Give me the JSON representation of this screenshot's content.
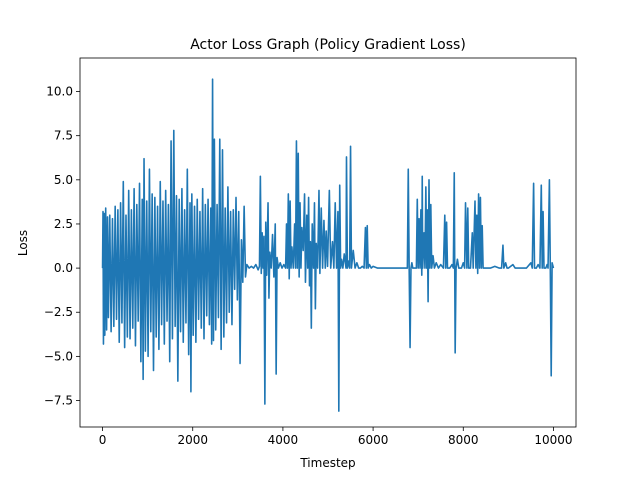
{
  "chart_data": {
    "type": "line",
    "title": "Actor Loss Graph (Policy Gradient Loss)",
    "xlabel": "Timestep",
    "ylabel": "Loss",
    "xlim": [
      -500,
      10500
    ],
    "ylim": [
      -9.0,
      11.9
    ],
    "xticks": [
      0,
      2000,
      4000,
      6000,
      8000,
      10000
    ],
    "yticks": [
      -7.5,
      -5.0,
      -2.5,
      0.0,
      2.5,
      5.0,
      7.5,
      10.0
    ],
    "xtick_labels": [
      "0",
      "2000",
      "4000",
      "6000",
      "8000",
      "10000"
    ],
    "ytick_labels": [
      "−7.5",
      "−5.0",
      "−2.5",
      "0.0",
      "2.5",
      "5.0",
      "7.5",
      "10.0"
    ],
    "grid": false,
    "line_color": "#1f77b4",
    "series": [
      {
        "values": [
          [
            0,
            0.0
          ],
          [
            10,
            3.2
          ],
          [
            20,
            -4.3
          ],
          [
            35,
            3.1
          ],
          [
            50,
            -3.8
          ],
          [
            70,
            3.4
          ],
          [
            90,
            -3.5
          ],
          [
            110,
            2.9
          ],
          [
            130,
            -2.8
          ],
          [
            160,
            3.0
          ],
          [
            190,
            -3.6
          ],
          [
            220,
            2.8
          ],
          [
            250,
            -3.3
          ],
          [
            280,
            3.5
          ],
          [
            310,
            -2.9
          ],
          [
            340,
            3.3
          ],
          [
            370,
            -4.2
          ],
          [
            400,
            3.7
          ],
          [
            430,
            -3.1
          ],
          [
            460,
            4.9
          ],
          [
            490,
            -4.5
          ],
          [
            520,
            3.0
          ],
          [
            550,
            -3.9
          ],
          [
            580,
            4.4
          ],
          [
            610,
            -4.0
          ],
          [
            640,
            3.3
          ],
          [
            670,
            -3.4
          ],
          [
            700,
            4.5
          ],
          [
            730,
            -4.4
          ],
          [
            760,
            3.6
          ],
          [
            790,
            -3.0
          ],
          [
            820,
            4.8
          ],
          [
            850,
            -5.3
          ],
          [
            880,
            3.9
          ],
          [
            900,
            -6.3
          ],
          [
            920,
            6.2
          ],
          [
            950,
            -4.7
          ],
          [
            980,
            3.8
          ],
          [
            1010,
            -5.0
          ],
          [
            1040,
            5.6
          ],
          [
            1070,
            -3.6
          ],
          [
            1100,
            4.2
          ],
          [
            1130,
            -5.8
          ],
          [
            1160,
            4.0
          ],
          [
            1190,
            -3.9
          ],
          [
            1220,
            3.5
          ],
          [
            1250,
            -4.6
          ],
          [
            1280,
            4.9
          ],
          [
            1310,
            -3.2
          ],
          [
            1340,
            3.8
          ],
          [
            1370,
            -4.3
          ],
          [
            1400,
            4.4
          ],
          [
            1430,
            -3.0
          ],
          [
            1460,
            3.6
          ],
          [
            1490,
            -5.3
          ],
          [
            1520,
            7.2
          ],
          [
            1550,
            -4.0
          ],
          [
            1580,
            7.8
          ],
          [
            1610,
            -3.3
          ],
          [
            1640,
            4.1
          ],
          [
            1670,
            -6.4
          ],
          [
            1700,
            3.9
          ],
          [
            1730,
            -3.6
          ],
          [
            1760,
            4.5
          ],
          [
            1790,
            -4.2
          ],
          [
            1820,
            3.3
          ],
          [
            1850,
            -3.1
          ],
          [
            1880,
            5.6
          ],
          [
            1910,
            -4.9
          ],
          [
            1940,
            3.7
          ],
          [
            1960,
            -7.0
          ],
          [
            1980,
            4.2
          ],
          [
            2010,
            -3.8
          ],
          [
            2040,
            3.5
          ],
          [
            2070,
            -4.2
          ],
          [
            2100,
            3.9
          ],
          [
            2130,
            -2.9
          ],
          [
            2160,
            3.2
          ],
          [
            2190,
            -3.4
          ],
          [
            2220,
            4.5
          ],
          [
            2250,
            -4.0
          ],
          [
            2280,
            3.6
          ],
          [
            2310,
            -2.7
          ],
          [
            2340,
            3.9
          ],
          [
            2370,
            -3.2
          ],
          [
            2400,
            3.4
          ],
          [
            2420,
            -4.3
          ],
          [
            2440,
            10.7
          ],
          [
            2460,
            -4.1
          ],
          [
            2480,
            7.3
          ],
          [
            2510,
            -3.5
          ],
          [
            2540,
            3.6
          ],
          [
            2570,
            -2.8
          ],
          [
            2600,
            7.3
          ],
          [
            2630,
            -4.6
          ],
          [
            2660,
            6.7
          ],
          [
            2690,
            -3.9
          ],
          [
            2720,
            3.4
          ],
          [
            2750,
            -3.1
          ],
          [
            2780,
            4.6
          ],
          [
            2810,
            -2.5
          ],
          [
            2840,
            3.2
          ],
          [
            2870,
            -3.2
          ],
          [
            2900,
            3.3
          ],
          [
            2930,
            -1.2
          ],
          [
            2960,
            4.0
          ],
          [
            2990,
            -1.8
          ],
          [
            3020,
            3.2
          ],
          [
            3050,
            -5.4
          ],
          [
            3080,
            1.6
          ],
          [
            3110,
            -0.8
          ],
          [
            3140,
            3.5
          ],
          [
            3170,
            -0.5
          ],
          [
            3200,
            0.2
          ],
          [
            3250,
            0.0
          ],
          [
            3300,
            0.1
          ],
          [
            3350,
            0.0
          ],
          [
            3400,
            0.2
          ],
          [
            3450,
            -0.1
          ],
          [
            3480,
            0.1
          ],
          [
            3500,
            5.2
          ],
          [
            3520,
            -0.3
          ],
          [
            3540,
            2.0
          ],
          [
            3560,
            0.0
          ],
          [
            3580,
            1.8
          ],
          [
            3600,
            -7.7
          ],
          [
            3620,
            2.6
          ],
          [
            3640,
            -0.4
          ],
          [
            3670,
            3.7
          ],
          [
            3690,
            -1.7
          ],
          [
            3710,
            0.9
          ],
          [
            3740,
            0.0
          ],
          [
            3770,
            1.9
          ],
          [
            3800,
            -0.5
          ],
          [
            3830,
            2.5
          ],
          [
            3850,
            -6.0
          ],
          [
            3870,
            0.6
          ],
          [
            3900,
            0.0
          ],
          [
            3940,
            0.3
          ],
          [
            3980,
            0.0
          ],
          [
            4020,
            0.2
          ],
          [
            4060,
            0.0
          ],
          [
            4080,
            2.5
          ],
          [
            4100,
            0.0
          ],
          [
            4120,
            4.2
          ],
          [
            4140,
            -0.6
          ],
          [
            4160,
            3.8
          ],
          [
            4180,
            0.0
          ],
          [
            4200,
            1.2
          ],
          [
            4230,
            0.0
          ],
          [
            4260,
            2.5
          ],
          [
            4280,
            0.0
          ],
          [
            4300,
            7.2
          ],
          [
            4320,
            0.0
          ],
          [
            4340,
            6.5
          ],
          [
            4360,
            -0.5
          ],
          [
            4380,
            3.7
          ],
          [
            4400,
            0.0
          ],
          [
            4420,
            2.3
          ],
          [
            4450,
            1.0
          ],
          [
            4480,
            4.2
          ],
          [
            4500,
            -0.8
          ],
          [
            4530,
            3.0
          ],
          [
            4550,
            0.0
          ],
          [
            4570,
            4.0
          ],
          [
            4590,
            -1.0
          ],
          [
            4610,
            1.5
          ],
          [
            4630,
            -3.4
          ],
          [
            4650,
            2.5
          ],
          [
            4680,
            0.0
          ],
          [
            4700,
            3.7
          ],
          [
            4720,
            -2.3
          ],
          [
            4740,
            1.4
          ],
          [
            4770,
            0.0
          ],
          [
            4800,
            4.4
          ],
          [
            4820,
            -0.3
          ],
          [
            4850,
            3.4
          ],
          [
            4880,
            0.0
          ],
          [
            4910,
            2.7
          ],
          [
            4940,
            0.0
          ],
          [
            4960,
            2.1
          ],
          [
            4990,
            0.1
          ],
          [
            5030,
            4.4
          ],
          [
            5060,
            0.0
          ],
          [
            5100,
            1.5
          ],
          [
            5130,
            0.0
          ],
          [
            5160,
            3.7
          ],
          [
            5190,
            0.0
          ],
          [
            5220,
            3.2
          ],
          [
            5240,
            -8.1
          ],
          [
            5260,
            4.7
          ],
          [
            5280,
            0.0
          ],
          [
            5300,
            0.5
          ],
          [
            5330,
            0.0
          ],
          [
            5360,
            0.8
          ],
          [
            5400,
            0.0
          ],
          [
            5410,
            6.3
          ],
          [
            5430,
            0.0
          ],
          [
            5460,
            0.4
          ],
          [
            5480,
            0.0
          ],
          [
            5500,
            6.9
          ],
          [
            5520,
            0.0
          ],
          [
            5560,
            1.0
          ],
          [
            5600,
            0.0
          ],
          [
            5640,
            0.3
          ],
          [
            5680,
            0.0
          ],
          [
            5720,
            0.0
          ],
          [
            5760,
            0.1
          ],
          [
            5800,
            0.0
          ],
          [
            5830,
            2.3
          ],
          [
            5850,
            0.0
          ],
          [
            5870,
            2.4
          ],
          [
            5890,
            0.0
          ],
          [
            5920,
            0.2
          ],
          [
            5960,
            0.0
          ],
          [
            6000,
            0.1
          ],
          [
            6100,
            0.0
          ],
          [
            6200,
            0.0
          ],
          [
            6300,
            0.0
          ],
          [
            6400,
            0.0
          ],
          [
            6500,
            0.0
          ],
          [
            6600,
            0.0
          ],
          [
            6700,
            0.0
          ],
          [
            6760,
            0.0
          ],
          [
            6780,
            5.6
          ],
          [
            6800,
            0.0
          ],
          [
            6820,
            -4.5
          ],
          [
            6840,
            0.0
          ],
          [
            6860,
            0.3
          ],
          [
            6880,
            0.0
          ],
          [
            6960,
            0.0
          ],
          [
            6980,
            3.9
          ],
          [
            7000,
            0.0
          ],
          [
            7020,
            2.8
          ],
          [
            7040,
            0.0
          ],
          [
            7060,
            3.3
          ],
          [
            7080,
            -0.4
          ],
          [
            7090,
            5.2
          ],
          [
            7100,
            0.0
          ],
          [
            7130,
            2.0
          ],
          [
            7150,
            0.0
          ],
          [
            7170,
            4.6
          ],
          [
            7190,
            0.0
          ],
          [
            7200,
            3.3
          ],
          [
            7220,
            -1.9
          ],
          [
            7240,
            5.0
          ],
          [
            7260,
            0.0
          ],
          [
            7280,
            3.6
          ],
          [
            7300,
            0.0
          ],
          [
            7330,
            0.7
          ],
          [
            7360,
            0.0
          ],
          [
            7400,
            0.3
          ],
          [
            7450,
            0.0
          ],
          [
            7500,
            0.2
          ],
          [
            7560,
            0.0
          ],
          [
            7590,
            3.0
          ],
          [
            7610,
            0.0
          ],
          [
            7630,
            2.6
          ],
          [
            7650,
            0.0
          ],
          [
            7700,
            0.0
          ],
          [
            7750,
            0.2
          ],
          [
            7780,
            0.0
          ],
          [
            7800,
            5.4
          ],
          [
            7820,
            -4.8
          ],
          [
            7840,
            0.0
          ],
          [
            7870,
            0.5
          ],
          [
            7900,
            0.0
          ],
          [
            7960,
            0.0
          ],
          [
            8000,
            0.3
          ],
          [
            8030,
            0.0
          ],
          [
            8050,
            3.7
          ],
          [
            8080,
            0.0
          ],
          [
            8100,
            3.4
          ],
          [
            8120,
            0.0
          ],
          [
            8160,
            0.0
          ],
          [
            8200,
            2.0
          ],
          [
            8220,
            0.0
          ],
          [
            8260,
            3.8
          ],
          [
            8280,
            0.0
          ],
          [
            8300,
            3.0
          ],
          [
            8320,
            -0.3
          ],
          [
            8340,
            4.2
          ],
          [
            8360,
            0.0
          ],
          [
            8380,
            4.0
          ],
          [
            8400,
            0.0
          ],
          [
            8420,
            2.4
          ],
          [
            8440,
            0.0
          ],
          [
            8500,
            0.0
          ],
          [
            8600,
            0.0
          ],
          [
            8700,
            0.1
          ],
          [
            8800,
            0.0
          ],
          [
            8850,
            0.0
          ],
          [
            8880,
            1.3
          ],
          [
            8900,
            0.0
          ],
          [
            8940,
            0.3
          ],
          [
            8970,
            0.0
          ],
          [
            9000,
            0.0
          ],
          [
            9100,
            0.2
          ],
          [
            9150,
            0.0
          ],
          [
            9200,
            0.0
          ],
          [
            9300,
            0.0
          ],
          [
            9400,
            0.0
          ],
          [
            9500,
            0.3
          ],
          [
            9530,
            0.0
          ],
          [
            9560,
            4.8
          ],
          [
            9580,
            0.0
          ],
          [
            9620,
            0.0
          ],
          [
            9660,
            0.2
          ],
          [
            9700,
            0.0
          ],
          [
            9730,
            4.7
          ],
          [
            9750,
            0.0
          ],
          [
            9770,
            3.2
          ],
          [
            9790,
            0.0
          ],
          [
            9830,
            0.0
          ],
          [
            9860,
            0.2
          ],
          [
            9880,
            0.0
          ],
          [
            9910,
            5.0
          ],
          [
            9930,
            0.0
          ],
          [
            9950,
            -6.1
          ],
          [
            9970,
            0.3
          ],
          [
            10000,
            0.0
          ]
        ]
      }
    ]
  }
}
